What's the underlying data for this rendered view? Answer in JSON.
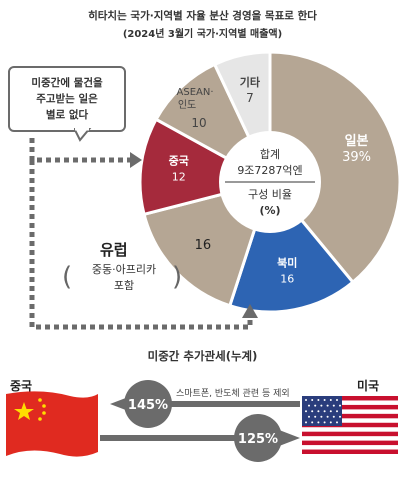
{
  "header": {
    "title": "히타치는 국가·지역별 자율 분산 경영을 목표로 한다",
    "subtitle": "(2024년 3월기 국가·지역별 매출액)"
  },
  "chart_data": {
    "type": "pie",
    "title": "히타치는 국가·지역별 자율 분산 경영을 목표로 한다",
    "subtitle": "(2024년 3월기 국가·지역별 매출액)",
    "center": {
      "line1": "합계",
      "line2": "9조7287억엔",
      "line3": "구성 비율",
      "line4": "(%)"
    },
    "slices": [
      {
        "label": "일본",
        "value": 39,
        "value_text": "39%",
        "color": "#b5a694"
      },
      {
        "label": "북미",
        "value": 16,
        "value_text": "16",
        "color": "#2d64b3"
      },
      {
        "label": "유럽",
        "value": 16,
        "value_text": "16",
        "color": "#b5a694"
      },
      {
        "label": "중국",
        "value": 12,
        "value_text": "12",
        "color": "#a52a3c"
      },
      {
        "label": "ASEAN·인도",
        "value": 10,
        "value_text": "10",
        "color": "#b5a694"
      },
      {
        "label": "기타",
        "value": 7,
        "value_text": "7",
        "color": "#e6e6e6"
      }
    ]
  },
  "annotations": {
    "bubble_lines": [
      "미중간에 물건을",
      "주고받는 일은",
      "별로 없다"
    ],
    "europe_label": "유럽",
    "europe_sub_lines": [
      "중동·아프리카",
      "포함"
    ],
    "europe_paren_left": "(",
    "europe_paren_right": ")",
    "asean_line1": "ASEAN·",
    "asean_line2": "인도"
  },
  "tariff": {
    "title": "미중간 추가관세(누계)",
    "china_label": "중국",
    "us_label": "미국",
    "us_to_china": "145%",
    "china_to_us": "125%",
    "note": "스마트폰, 반도체 관련 등 제외"
  },
  "colors": {
    "arrow": "#6b6b6b",
    "china_red": "#e02a20",
    "china_star": "#ffde00",
    "us_red": "#c8102e",
    "us_blue": "#2a3d7c"
  }
}
